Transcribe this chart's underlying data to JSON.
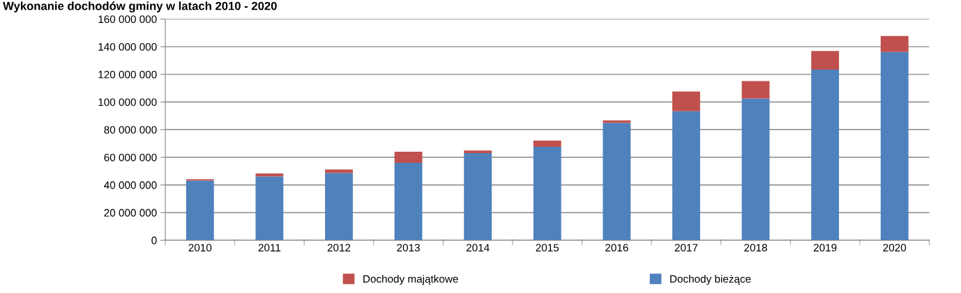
{
  "chart_data": {
    "type": "bar",
    "stacked": true,
    "title": "Wykonanie dochodów gminy w latach 2010 - 2020",
    "categories": [
      "2010",
      "2011",
      "2012",
      "2013",
      "2014",
      "2015",
      "2016",
      "2017",
      "2018",
      "2019",
      "2020"
    ],
    "series": [
      {
        "name": "Dochody bieżące",
        "color": "#4f81bd",
        "values": [
          43100000,
          46200000,
          48700000,
          56000000,
          63000000,
          67600000,
          84900000,
          93300000,
          102500000,
          123400000,
          136200000
        ]
      },
      {
        "name": "Dochody majątkowe",
        "color": "#c0504d",
        "values": [
          1000000,
          2100000,
          2500000,
          8000000,
          1900000,
          4500000,
          1800000,
          14300000,
          12600000,
          13500000,
          11500000
        ]
      }
    ],
    "ylim": [
      0,
      160000000
    ],
    "yticks": [
      0,
      {
        "value": 20000000,
        "label": "20 000 000"
      },
      {
        "value": 40000000,
        "label": "40 000 000"
      },
      {
        "value": 60000000,
        "label": "60 000 000"
      },
      {
        "value": 80000000,
        "label": "80 000 000"
      },
      {
        "value": 100000000,
        "label": "100 000 000"
      },
      {
        "value": 120000000,
        "label": "120 000 000"
      },
      {
        "value": 140000000,
        "label": "140 000 000"
      },
      {
        "value": 160000000,
        "label": "160 000 000"
      }
    ],
    "grid": "y",
    "legend": "bottom"
  }
}
